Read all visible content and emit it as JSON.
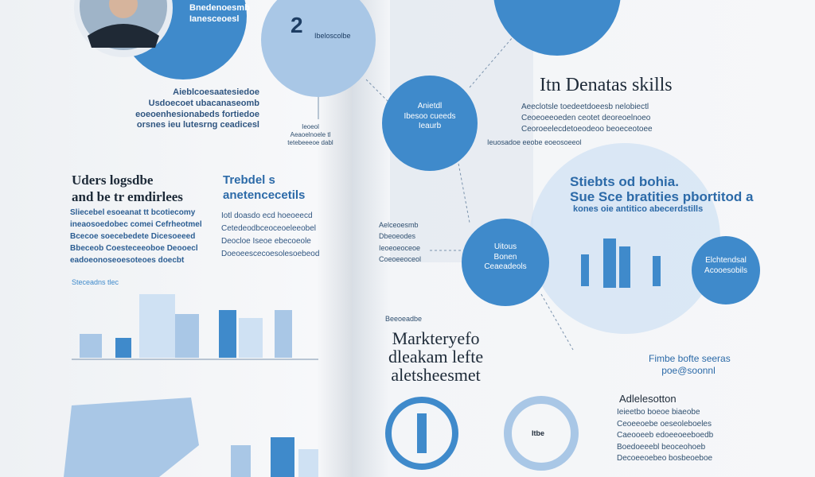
{
  "left_page": {
    "badge": "2",
    "header_lines": [
      "Bnedenoesmb",
      "Ianesceoesl"
    ],
    "badge_note": "Ibeloscolbe",
    "intro_lines": [
      "Aieblcoesaatesiedoe",
      "Usdoecoet ubacanaseomb",
      "eoeoenhesionabeds fortiedoe",
      "orsnes ieu lutesrng ceadicesl"
    ],
    "pointer_lines": [
      "Ieoeol",
      "Aeaoelnoele tl",
      "tetebeeeoe dabl"
    ],
    "section_a": {
      "title_lines": [
        "Uders logsdbe",
        "and be tr emdirlees"
      ],
      "body_lines": [
        "Sliecebel esoeanat tt bcotiecomy",
        "ineaosoedobec comei Cefrheotmel",
        "Bcecoe soecebedete Dicesoeeed",
        "Bbeceob Coesteceeoboe Deooecl",
        "eadoeonoseoesoteoes doecbt"
      ]
    },
    "section_b": {
      "title_lines": [
        "Trebdel s",
        "anetencecetils"
      ],
      "body_lines": [
        "Iotl doasdo ecd hoeoeecd",
        "Cetedeodbceoceoeleeobel",
        "Deocloe Iseoe ebecoeole",
        "Doeoeescecoesolesoebeod"
      ]
    },
    "chart_caption": "Steceadns tlec"
  },
  "right_page": {
    "heading": "Itn Denatas skills",
    "body_lines": [
      "Aeeclotsle toedeetdoeesb nelobiectl",
      "Ceoeoeeoeden ceotet deoreoelnoeo",
      "Ceoroeelecdetoeodeoo beoeceotoee"
    ],
    "pointer_note": "Ieuosadoe eeobe eoeosoeeol",
    "subheading_lines": [
      "Stiebts od bohia.",
      "Sue Sce bratities pbortitod a"
    ],
    "subheading_note": "kones oie antitico abecerdstills",
    "circle_a": [
      "Anietdl",
      "Ibesoo cueeds",
      "Ieaurb"
    ],
    "circle_b": [
      "Uitous",
      "Bonen",
      "Ceaeadeols"
    ],
    "circle_c": [
      "Elchtendsal",
      "Acooesobils"
    ],
    "left_lines": [
      "Aelceoesmb",
      "Dbeoeodes",
      "Ieoeoeoceoe",
      "Coeoeeoceol"
    ],
    "small_note": "Beeoeadbe",
    "section_c": {
      "title_lines": [
        "Markteryefo",
        "dleakam lefte",
        "aletsheesmet"
      ]
    },
    "side_title_lines": [
      "Fimbe bofte seeras",
      "poe@soonnl"
    ],
    "article": {
      "title": "Adlelesotton",
      "body_lines": [
        "Ieieetbo boeoe biaeobe",
        "Ceoeeoebe oeseoleboeles",
        "Caeooeeb edoeeoeeboedb",
        "Boedoeeebl beoceohoeb",
        "Decoeeoebeo bosbeoeboe"
      ]
    },
    "ring_label": "Itbe"
  }
}
